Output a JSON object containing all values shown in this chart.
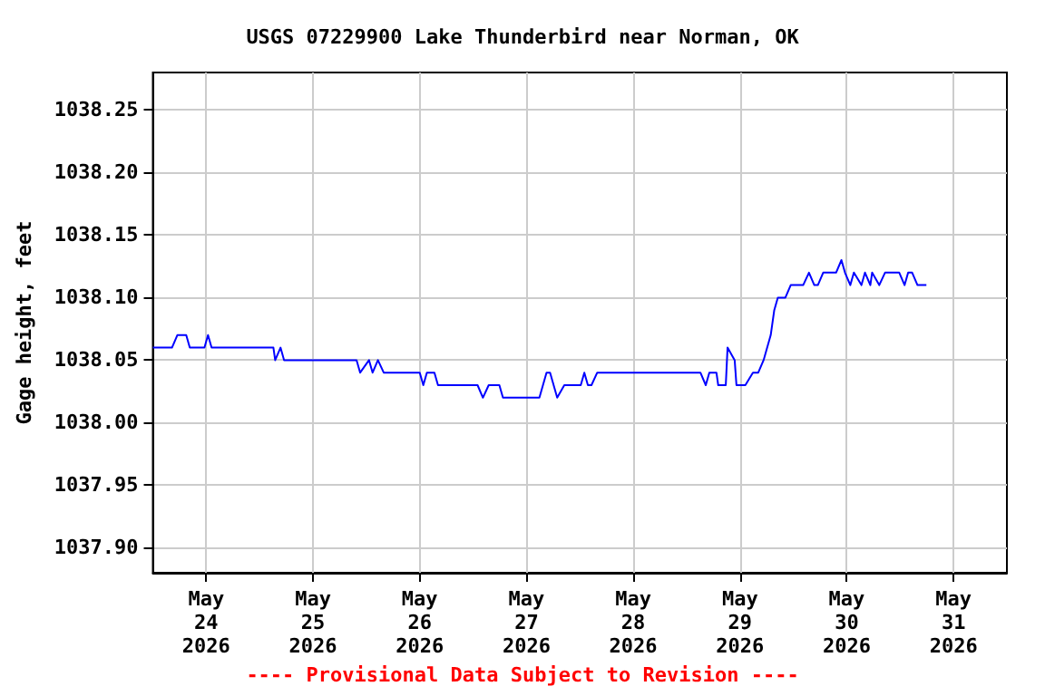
{
  "chart_data": {
    "type": "line",
    "title": "USGS 07229900 Lake Thunderbird near Norman, OK",
    "ylabel": "Gage height, feet",
    "annotations": [
      "---- Provisional Data Subject to Revision ----"
    ],
    "x": [
      "2026-05-23T12:00",
      "2026-05-23T16:18",
      "2026-05-23T17:30",
      "2026-05-23T19:30",
      "2026-05-23T20:18",
      "2026-05-23T23:36",
      "2026-05-24T00:24",
      "2026-05-24T01:12",
      "2026-05-24T15:06",
      "2026-05-24T15:30",
      "2026-05-24T16:42",
      "2026-05-24T17:30",
      "2026-05-25T09:48",
      "2026-05-25T10:36",
      "2026-05-25T12:36",
      "2026-05-25T13:24",
      "2026-05-25T14:36",
      "2026-05-25T15:54",
      "2026-05-26T00:00",
      "2026-05-26T00:48",
      "2026-05-26T01:36",
      "2026-05-26T03:18",
      "2026-05-26T04:06",
      "2026-05-26T13:00",
      "2026-05-26T14:12",
      "2026-05-26T15:30",
      "2026-05-26T17:54",
      "2026-05-26T18:42",
      "2026-05-27T02:54",
      "2026-05-27T04:30",
      "2026-05-27T05:18",
      "2026-05-27T06:54",
      "2026-05-27T08:30",
      "2026-05-27T12:12",
      "2026-05-27T13:00",
      "2026-05-27T13:48",
      "2026-05-27T14:36",
      "2026-05-27T15:54",
      "2026-05-28T15:06",
      "2026-05-28T16:18",
      "2026-05-28T17:06",
      "2026-05-28T18:42",
      "2026-05-28T19:06",
      "2026-05-28T20:48",
      "2026-05-28T21:12",
      "2026-05-28T22:48",
      "2026-05-28T23:12",
      "2026-05-29T01:12",
      "2026-05-29T02:54",
      "2026-05-29T04:06",
      "2026-05-29T05:18",
      "2026-05-29T06:54",
      "2026-05-29T07:42",
      "2026-05-29T08:30",
      "2026-05-29T10:12",
      "2026-05-29T11:24",
      "2026-05-29T14:12",
      "2026-05-29T15:30",
      "2026-05-29T16:42",
      "2026-05-29T17:30",
      "2026-05-29T18:42",
      "2026-05-29T21:36",
      "2026-05-29T22:48",
      "2026-05-29T23:36",
      "2026-05-30T00:48",
      "2026-05-30T01:36",
      "2026-05-30T03:18",
      "2026-05-30T04:06",
      "2026-05-30T05:18",
      "2026-05-30T05:42",
      "2026-05-30T07:18",
      "2026-05-30T08:36",
      "2026-05-30T11:48",
      "2026-05-30T13:00",
      "2026-05-30T13:48",
      "2026-05-30T14:42",
      "2026-05-30T15:54",
      "2026-05-30T17:54"
    ],
    "series": [
      {
        "color": "#0000ff",
        "values": [
          1038.06,
          1038.06,
          1038.07,
          1038.07,
          1038.06,
          1038.06,
          1038.07,
          1038.06,
          1038.06,
          1038.05,
          1038.06,
          1038.05,
          1038.05,
          1038.04,
          1038.05,
          1038.04,
          1038.05,
          1038.04,
          1038.04,
          1038.03,
          1038.04,
          1038.04,
          1038.03,
          1038.03,
          1038.02,
          1038.03,
          1038.03,
          1038.02,
          1038.02,
          1038.04,
          1038.04,
          1038.02,
          1038.03,
          1038.03,
          1038.04,
          1038.03,
          1038.03,
          1038.04,
          1038.04,
          1038.03,
          1038.04,
          1038.04,
          1038.03,
          1038.03,
          1038.06,
          1038.05,
          1038.03,
          1038.03,
          1038.04,
          1038.04,
          1038.05,
          1038.07,
          1038.09,
          1038.1,
          1038.1,
          1038.11,
          1038.11,
          1038.12,
          1038.11,
          1038.11,
          1038.12,
          1038.12,
          1038.13,
          1038.12,
          1038.11,
          1038.12,
          1038.11,
          1038.12,
          1038.11,
          1038.12,
          1038.11,
          1038.12,
          1038.12,
          1038.11,
          1038.12,
          1038.12,
          1038.11,
          1038.11
        ]
      }
    ],
    "xlim": [
      "2026-05-23T12:00",
      "2026-05-31T12:00"
    ],
    "xticks": [
      {
        "value": "2026-05-24",
        "label": "May\n24\n2026"
      },
      {
        "value": "2026-05-25",
        "label": "May\n25\n2026"
      },
      {
        "value": "2026-05-26",
        "label": "May\n26\n2026"
      },
      {
        "value": "2026-05-27",
        "label": "May\n27\n2026"
      },
      {
        "value": "2026-05-28",
        "label": "May\n28\n2026"
      },
      {
        "value": "2026-05-29",
        "label": "May\n29\n2026"
      },
      {
        "value": "2026-05-30",
        "label": "May\n30\n2026"
      },
      {
        "value": "2026-05-31",
        "label": "May\n31\n2026"
      }
    ],
    "ylim": [
      1037.88,
      1038.28
    ],
    "yticks": [
      {
        "value": 1037.9,
        "label": "1037.90"
      },
      {
        "value": 1037.95,
        "label": "1037.95"
      },
      {
        "value": 1038.0,
        "label": "1038.00"
      },
      {
        "value": 1038.05,
        "label": "1038.05"
      },
      {
        "value": 1038.1,
        "label": "1038.10"
      },
      {
        "value": 1038.15,
        "label": "1038.15"
      },
      {
        "value": 1038.2,
        "label": "1038.20"
      },
      {
        "value": 1038.25,
        "label": "1038.25"
      }
    ],
    "grid": true,
    "marker": "none",
    "line_style": "solid"
  }
}
